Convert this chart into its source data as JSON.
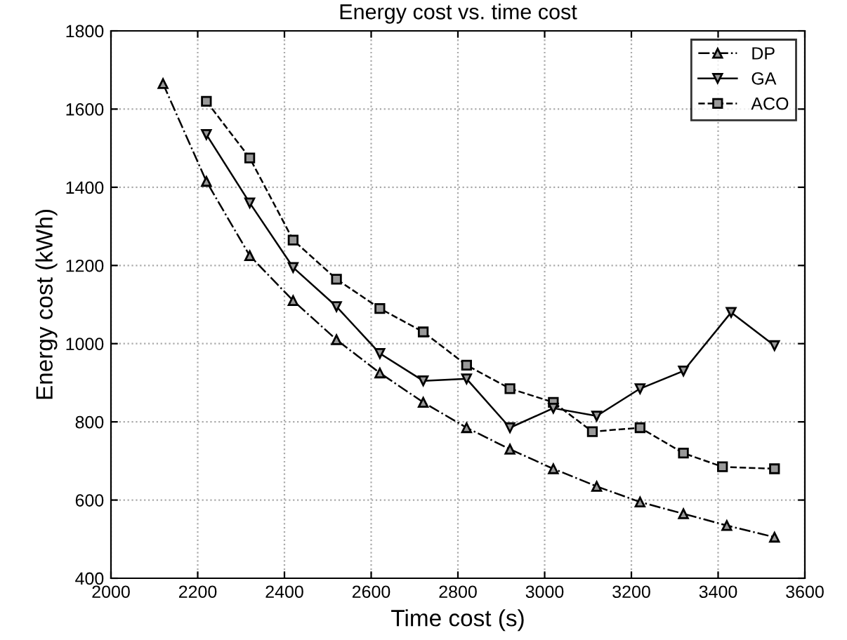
{
  "chart_data": {
    "type": "line",
    "title": "Energy cost vs. time cost",
    "xlabel": "Time cost (s)",
    "ylabel": "Energy cost (kWh)",
    "xlim": [
      2000,
      3600
    ],
    "xticks": [
      2000,
      2200,
      2400,
      2600,
      2800,
      3000,
      3200,
      3400,
      3600
    ],
    "ylim": [
      400,
      1800
    ],
    "yticks": [
      400,
      600,
      800,
      1000,
      1200,
      1400,
      1600,
      1800
    ],
    "grid": true,
    "legend": "top right",
    "series": [
      {
        "name": "DP",
        "color": "#000000",
        "marker": "triangle",
        "line_style": "dashdot",
        "x": [
          2120,
          2220,
          2320,
          2420,
          2520,
          2620,
          2720,
          2820,
          2920,
          3020,
          3120,
          3220,
          3320,
          3420,
          3530
        ],
        "values": [
          1665,
          1415,
          1225,
          1110,
          1010,
          925,
          850,
          785,
          730,
          680,
          635,
          595,
          565,
          535,
          505
        ]
      },
      {
        "name": "GA",
        "color": "#000000",
        "marker": "triangle_down",
        "line_style": "solid",
        "x": [
          2220,
          2320,
          2420,
          2520,
          2620,
          2720,
          2820,
          2920,
          3020,
          3120,
          3220,
          3320,
          3430,
          3530
        ],
        "values": [
          1535,
          1360,
          1195,
          1095,
          975,
          905,
          910,
          785,
          835,
          815,
          885,
          930,
          1080,
          995
        ]
      },
      {
        "name": "ACO",
        "color": "#000000",
        "marker": "square",
        "line_style": "dashed",
        "x": [
          2220,
          2320,
          2420,
          2520,
          2620,
          2720,
          2820,
          2920,
          3020,
          3110,
          3220,
          3320,
          3410,
          3530
        ],
        "values": [
          1620,
          1475,
          1265,
          1165,
          1090,
          1030,
          945,
          885,
          850,
          775,
          785,
          720,
          685,
          680
        ]
      }
    ]
  }
}
